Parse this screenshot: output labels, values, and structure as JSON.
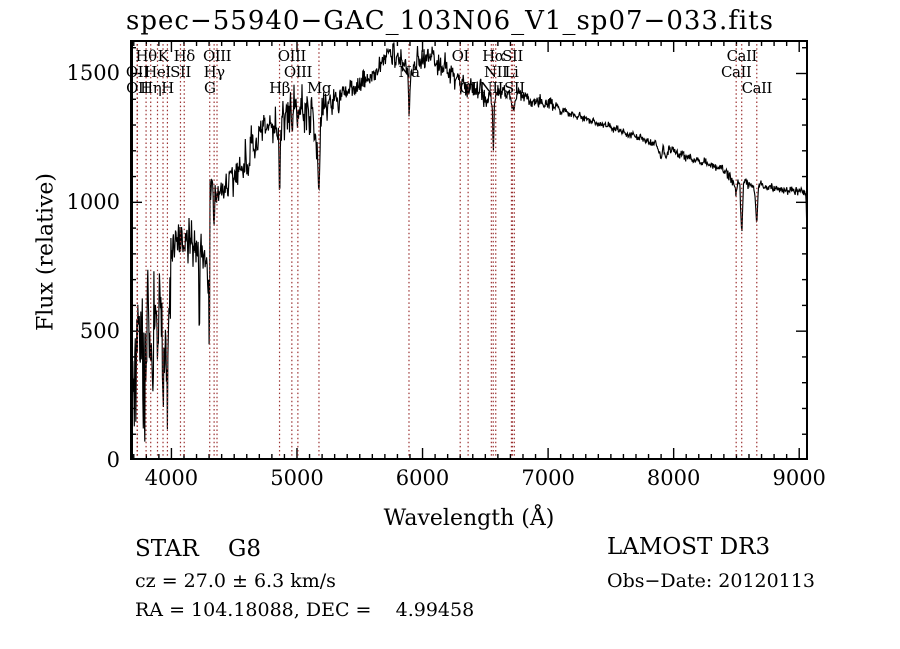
{
  "title": "spec−55940−GAC_103N06_V1_sp07−033.fits",
  "x_axis": {
    "label": "Wavelength (Å)",
    "major_ticks": [
      4000,
      5000,
      6000,
      7000,
      8000,
      9000
    ],
    "minor_step": 100,
    "range": [
      3670,
      9070
    ]
  },
  "y_axis": {
    "label": "Flux (relative)",
    "major_ticks": [
      0,
      500,
      1000,
      1500
    ],
    "minor_step": 100,
    "range": [
      0,
      1630
    ]
  },
  "annotations": {
    "class_line": "STAR    G8",
    "cz_line": "cz = 27.0 ± 6.3 km/s",
    "coord_line": "RA = 104.18088, DEC =    4.99458",
    "survey": "LAMOST DR3",
    "obs_date": "Obs−Date: 20120113"
  },
  "colors": {
    "spectrum": "#000000",
    "line_marker": "#9c3232",
    "axis": "#000000",
    "background": "#ffffff"
  },
  "spectral_lines": [
    {
      "label": "OII",
      "wl": 3727,
      "row": 2
    },
    {
      "label": "OII",
      "wl": 3729,
      "row": 3
    },
    {
      "label": "Hθ",
      "wl": 3798,
      "row": 1
    },
    {
      "label": "Hη",
      "wl": 3835,
      "row": 3
    },
    {
      "label": "HeI",
      "wl": 3889,
      "row": 2
    },
    {
      "label": "K",
      "wl": 3933,
      "row": 1
    },
    {
      "label": "H",
      "wl": 3968,
      "row": 3
    },
    {
      "label": "SII",
      "wl": 4072,
      "row": 2
    },
    {
      "label": "Hδ",
      "wl": 4102,
      "row": 1
    },
    {
      "label": "G",
      "wl": 4305,
      "row": 3
    },
    {
      "label": "Hγ",
      "wl": 4340,
      "row": 2
    },
    {
      "label": "OIII",
      "wl": 4363,
      "row": 1
    },
    {
      "label": "Hβ",
      "wl": 4861,
      "row": 3
    },
    {
      "label": "OIII",
      "wl": 4959,
      "row": 1
    },
    {
      "label": "OIII",
      "wl": 5007,
      "row": 2
    },
    {
      "label": "Mg",
      "wl": 5175,
      "row": 3
    },
    {
      "label": "Na",
      "wl": 5892,
      "row": 2
    },
    {
      "label": "OI",
      "wl": 6300,
      "row": 1
    },
    {
      "label": "OI",
      "wl": 6363,
      "row": 3
    },
    {
      "label": "NII",
      "wl": 6548,
      "row": 3
    },
    {
      "label": "Hα",
      "wl": 6563,
      "row": 1
    },
    {
      "label": "NII",
      "wl": 6583,
      "row": 2
    },
    {
      "label": "Li",
      "wl": 6708,
      "row": 2
    },
    {
      "label": "SII",
      "wl": 6716,
      "row": 1
    },
    {
      "label": "SII",
      "wl": 6731,
      "row": 3
    },
    {
      "label": "CaII",
      "wl": 8498,
      "row": 2
    },
    {
      "label": "CaII",
      "wl": 8542,
      "row": 1
    },
    {
      "label": "CaII",
      "wl": 8662,
      "row": 3
    }
  ],
  "chart_data": {
    "type": "line",
    "title": "spec−55940−GAC_103N06_V1_sp07−033.fits",
    "xlabel": "Wavelength (Å)",
    "ylabel": "Flux (relative)",
    "xlim": [
      3670,
      9070
    ],
    "ylim": [
      0,
      1630
    ],
    "grid": false,
    "legend": "none",
    "seed": 7,
    "sample_step": 4,
    "envelope": [
      [
        3672,
        30
      ],
      [
        3676,
        300
      ],
      [
        3680,
        60
      ],
      [
        3684,
        480
      ],
      [
        3688,
        140
      ],
      [
        3692,
        520
      ],
      [
        3696,
        220
      ],
      [
        3700,
        420
      ],
      [
        3705,
        120
      ],
      [
        3710,
        540
      ],
      [
        3716,
        300
      ],
      [
        3722,
        560
      ],
      [
        3727,
        400
      ],
      [
        3732,
        580
      ],
      [
        3738,
        340
      ],
      [
        3744,
        600
      ],
      [
        3750,
        450
      ],
      [
        3756,
        620
      ],
      [
        3762,
        360
      ],
      [
        3768,
        560
      ],
      [
        3774,
        200
      ],
      [
        3780,
        460
      ],
      [
        3786,
        130
      ],
      [
        3792,
        380
      ],
      [
        3798,
        170
      ],
      [
        3804,
        470
      ],
      [
        3810,
        620
      ],
      [
        3816,
        520
      ],
      [
        3822,
        400
      ],
      [
        3828,
        540
      ],
      [
        3835,
        210
      ],
      [
        3842,
        460
      ],
      [
        3849,
        250
      ],
      [
        3856,
        540
      ],
      [
        3863,
        620
      ],
      [
        3870,
        440
      ],
      [
        3877,
        540
      ],
      [
        3883,
        460
      ],
      [
        3889,
        360
      ],
      [
        3896,
        560
      ],
      [
        3903,
        630
      ],
      [
        3910,
        520
      ],
      [
        3917,
        560
      ],
      [
        3925,
        480
      ],
      [
        3933,
        240
      ],
      [
        3941,
        500
      ],
      [
        3949,
        560
      ],
      [
        3957,
        460
      ],
      [
        3963,
        350
      ],
      [
        3968,
        190
      ],
      [
        3974,
        380
      ],
      [
        3980,
        560
      ],
      [
        3988,
        660
      ],
      [
        3996,
        740
      ],
      [
        4005,
        800
      ],
      [
        4015,
        850
      ],
      [
        4025,
        800
      ],
      [
        4035,
        860
      ],
      [
        4045,
        820
      ],
      [
        4055,
        880
      ],
      [
        4065,
        830
      ],
      [
        4075,
        870
      ],
      [
        4085,
        810
      ],
      [
        4095,
        840
      ],
      [
        4102,
        770
      ],
      [
        4110,
        850
      ],
      [
        4120,
        880
      ],
      [
        4130,
        820
      ],
      [
        4140,
        870
      ],
      [
        4152,
        810
      ],
      [
        4164,
        870
      ],
      [
        4176,
        820
      ],
      [
        4188,
        860
      ],
      [
        4200,
        810
      ],
      [
        4212,
        855
      ],
      [
        4215,
        800
      ],
      [
        4222,
        420
      ],
      [
        4228,
        810
      ],
      [
        4240,
        850
      ],
      [
        4252,
        790
      ],
      [
        4264,
        830
      ],
      [
        4276,
        770
      ],
      [
        4288,
        720
      ],
      [
        4296,
        650
      ],
      [
        4302,
        400
      ],
      [
        4308,
        1080
      ],
      [
        4318,
        1030
      ],
      [
        4326,
        1060
      ],
      [
        4334,
        980
      ],
      [
        4340,
        920
      ],
      [
        4348,
        1050
      ],
      [
        4358,
        1000
      ],
      [
        4370,
        1060
      ],
      [
        4382,
        1010
      ],
      [
        4394,
        1070
      ],
      [
        4410,
        1030
      ],
      [
        4430,
        1090
      ],
      [
        4450,
        1050
      ],
      [
        4470,
        1110
      ],
      [
        4490,
        1070
      ],
      [
        4510,
        1120
      ],
      [
        4535,
        1150
      ],
      [
        4560,
        1120
      ],
      [
        4585,
        1180
      ],
      [
        4610,
        1160
      ],
      [
        4635,
        1220
      ],
      [
        4660,
        1200
      ],
      [
        4685,
        1260
      ],
      [
        4710,
        1240
      ],
      [
        4735,
        1300
      ],
      [
        4760,
        1270
      ],
      [
        4785,
        1320
      ],
      [
        4810,
        1290
      ],
      [
        4835,
        1320
      ],
      [
        4850,
        1280
      ],
      [
        4861,
        1050
      ],
      [
        4872,
        1290
      ],
      [
        4885,
        1340
      ],
      [
        4900,
        1310
      ],
      [
        4915,
        1360
      ],
      [
        4930,
        1320
      ],
      [
        4945,
        1370
      ],
      [
        4960,
        1330
      ],
      [
        4975,
        1380
      ],
      [
        4990,
        1340
      ],
      [
        5005,
        1380
      ],
      [
        5020,
        1340
      ],
      [
        5040,
        1390
      ],
      [
        5060,
        1340
      ],
      [
        5080,
        1380
      ],
      [
        5100,
        1330
      ],
      [
        5120,
        1360
      ],
      [
        5140,
        1300
      ],
      [
        5160,
        1240
      ],
      [
        5175,
        1030
      ],
      [
        5188,
        1270
      ],
      [
        5200,
        1340
      ],
      [
        5220,
        1390
      ],
      [
        5240,
        1360
      ],
      [
        5260,
        1410
      ],
      [
        5280,
        1380
      ],
      [
        5300,
        1420
      ],
      [
        5330,
        1390
      ],
      [
        5360,
        1430
      ],
      [
        5390,
        1410
      ],
      [
        5420,
        1450
      ],
      [
        5450,
        1430
      ],
      [
        5480,
        1470
      ],
      [
        5510,
        1450
      ],
      [
        5540,
        1490
      ],
      [
        5570,
        1470
      ],
      [
        5600,
        1510
      ],
      [
        5630,
        1490
      ],
      [
        5660,
        1530
      ],
      [
        5690,
        1550
      ],
      [
        5715,
        1580
      ],
      [
        5740,
        1605
      ],
      [
        5755,
        1570
      ],
      [
        5770,
        1600
      ],
      [
        5785,
        1555
      ],
      [
        5800,
        1580
      ],
      [
        5815,
        1540
      ],
      [
        5830,
        1565
      ],
      [
        5845,
        1525
      ],
      [
        5860,
        1545
      ],
      [
        5875,
        1505
      ],
      [
        5886,
        1460
      ],
      [
        5893,
        1310
      ],
      [
        5900,
        1460
      ],
      [
        5915,
        1520
      ],
      [
        5930,
        1555
      ],
      [
        5945,
        1530
      ],
      [
        5960,
        1570
      ],
      [
        5980,
        1545
      ],
      [
        6000,
        1580
      ],
      [
        6020,
        1555
      ],
      [
        6040,
        1585
      ],
      [
        6060,
        1560
      ],
      [
        6080,
        1590
      ],
      [
        6100,
        1555
      ],
      [
        6120,
        1525
      ],
      [
        6140,
        1550
      ],
      [
        6160,
        1520
      ],
      [
        6180,
        1545
      ],
      [
        6200,
        1510
      ],
      [
        6220,
        1485
      ],
      [
        6240,
        1510
      ],
      [
        6260,
        1480
      ],
      [
        6280,
        1500
      ],
      [
        6300,
        1455
      ],
      [
        6320,
        1480
      ],
      [
        6340,
        1455
      ],
      [
        6363,
        1430
      ],
      [
        6385,
        1465
      ],
      [
        6405,
        1440
      ],
      [
        6425,
        1460
      ],
      [
        6445,
        1435
      ],
      [
        6465,
        1455
      ],
      [
        6485,
        1415
      ],
      [
        6505,
        1385
      ],
      [
        6525,
        1420
      ],
      [
        6545,
        1430
      ],
      [
        6555,
        1380
      ],
      [
        6563,
        1175
      ],
      [
        6572,
        1380
      ],
      [
        6585,
        1415
      ],
      [
        6605,
        1435
      ],
      [
        6625,
        1415
      ],
      [
        6645,
        1440
      ],
      [
        6665,
        1420
      ],
      [
        6685,
        1435
      ],
      [
        6700,
        1410
      ],
      [
        6716,
        1375
      ],
      [
        6731,
        1350
      ],
      [
        6745,
        1415
      ],
      [
        6765,
        1430
      ],
      [
        6790,
        1415
      ],
      [
        6815,
        1425
      ],
      [
        6840,
        1405
      ],
      [
        6865,
        1385
      ],
      [
        6890,
        1405
      ],
      [
        6920,
        1395
      ],
      [
        6950,
        1400
      ],
      [
        6980,
        1385
      ],
      [
        7010,
        1390
      ],
      [
        7040,
        1370
      ],
      [
        7070,
        1375
      ],
      [
        7100,
        1355
      ],
      [
        7130,
        1360
      ],
      [
        7160,
        1345
      ],
      [
        7190,
        1350
      ],
      [
        7220,
        1335
      ],
      [
        7250,
        1340
      ],
      [
        7280,
        1325
      ],
      [
        7310,
        1330
      ],
      [
        7340,
        1315
      ],
      [
        7370,
        1320
      ],
      [
        7400,
        1305
      ],
      [
        7430,
        1310
      ],
      [
        7460,
        1295
      ],
      [
        7490,
        1300
      ],
      [
        7520,
        1285
      ],
      [
        7550,
        1290
      ],
      [
        7580,
        1270
      ],
      [
        7610,
        1275
      ],
      [
        7640,
        1260
      ],
      [
        7670,
        1265
      ],
      [
        7700,
        1250
      ],
      [
        7730,
        1255
      ],
      [
        7760,
        1240
      ],
      [
        7790,
        1245
      ],
      [
        7820,
        1230
      ],
      [
        7850,
        1235
      ],
      [
        7880,
        1200
      ],
      [
        7900,
        1175
      ],
      [
        7915,
        1215
      ],
      [
        7930,
        1185
      ],
      [
        7945,
        1165
      ],
      [
        7960,
        1210
      ],
      [
        7980,
        1200
      ],
      [
        8010,
        1205
      ],
      [
        8040,
        1185
      ],
      [
        8070,
        1190
      ],
      [
        8100,
        1175
      ],
      [
        8130,
        1180
      ],
      [
        8160,
        1165
      ],
      [
        8190,
        1170
      ],
      [
        8220,
        1155
      ],
      [
        8250,
        1160
      ],
      [
        8280,
        1145
      ],
      [
        8310,
        1150
      ],
      [
        8340,
        1135
      ],
      [
        8370,
        1140
      ],
      [
        8400,
        1125
      ],
      [
        8430,
        1110
      ],
      [
        8460,
        1095
      ],
      [
        8480,
        1075
      ],
      [
        8498,
        1035
      ],
      [
        8512,
        1085
      ],
      [
        8528,
        1060
      ],
      [
        8542,
        870
      ],
      [
        8556,
        1075
      ],
      [
        8575,
        1085
      ],
      [
        8595,
        1070
      ],
      [
        8615,
        1080
      ],
      [
        8635,
        1060
      ],
      [
        8650,
        1020
      ],
      [
        8662,
        910
      ],
      [
        8676,
        1065
      ],
      [
        8695,
        1075
      ],
      [
        8715,
        1060
      ],
      [
        8735,
        1070
      ],
      [
        8755,
        1055
      ],
      [
        8775,
        1065
      ],
      [
        8795,
        1045
      ],
      [
        8815,
        1060
      ],
      [
        8835,
        1045
      ],
      [
        8855,
        1060
      ],
      [
        8875,
        1045
      ],
      [
        8895,
        1055
      ],
      [
        8915,
        1040
      ],
      [
        8935,
        1055
      ],
      [
        8955,
        1040
      ],
      [
        8975,
        1050
      ],
      [
        8995,
        1040
      ],
      [
        9015,
        1050
      ],
      [
        9035,
        1040
      ],
      [
        9050,
        1030
      ],
      [
        9058,
        990
      ],
      [
        9062,
        820
      ],
      [
        9066,
        760
      ]
    ],
    "noise_profile": [
      [
        3670,
        4000,
        230
      ],
      [
        4000,
        4300,
        110
      ],
      [
        4300,
        4520,
        90
      ],
      [
        4520,
        5220,
        100
      ],
      [
        5220,
        5560,
        60
      ],
      [
        5560,
        6120,
        55
      ],
      [
        6120,
        6620,
        55
      ],
      [
        6620,
        7050,
        35
      ],
      [
        7050,
        8380,
        20
      ],
      [
        8380,
        8700,
        25
      ],
      [
        8700,
        9045,
        22
      ],
      [
        9045,
        9070,
        50
      ]
    ]
  }
}
